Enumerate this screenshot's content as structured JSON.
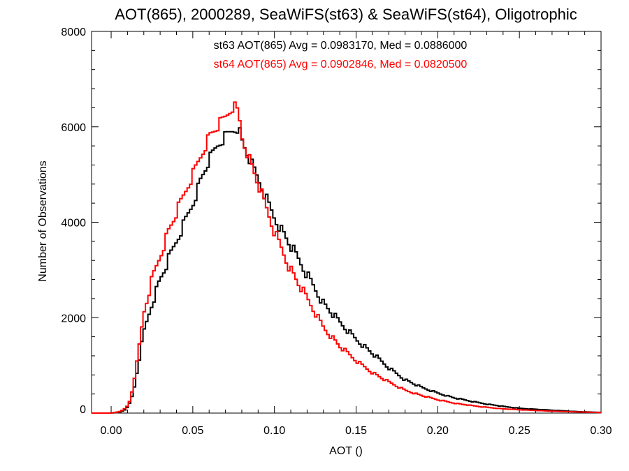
{
  "chart_data": {
    "type": "line",
    "title": "AOT(865), 2000289, SeaWiFS(st63) & SeaWiFS(st64), Oligotrophic",
    "xlabel": "AOT ()",
    "ylabel": "Number of Observations",
    "xlim": [
      -0.012,
      0.3
    ],
    "ylim": [
      0,
      8000
    ],
    "grid": false,
    "x_ticks": [
      0.0,
      0.05,
      0.1,
      0.15,
      0.2,
      0.25,
      0.3
    ],
    "x_tick_labels": [
      "0.00",
      "0.05",
      "0.10",
      "0.15",
      "0.20",
      "0.25",
      "0.30"
    ],
    "y_ticks": [
      0,
      2000,
      4000,
      6000,
      8000
    ],
    "y_tick_labels": [
      "0",
      "2000",
      "4000",
      "6000",
      "8000"
    ],
    "annotations": [
      {
        "text": "st63 AOT(865) Avg = 0.0983170, Med = 0.0886000",
        "color": "#000000"
      },
      {
        "text": "st64 AOT(865) Avg = 0.0902846, Med = 0.0820500",
        "color": "#ff0000"
      }
    ],
    "series": [
      {
        "color": "#000000",
        "style": "histogram-step",
        "x": [
          -0.012,
          0.0,
          0.005,
          0.008,
          0.01,
          0.012,
          0.014,
          0.016,
          0.018,
          0.02,
          0.025,
          0.03,
          0.035,
          0.04,
          0.045,
          0.05,
          0.055,
          0.06,
          0.065,
          0.07,
          0.075,
          0.078,
          0.08,
          0.085,
          0.09,
          0.095,
          0.1,
          0.105,
          0.11,
          0.115,
          0.12,
          0.125,
          0.13,
          0.14,
          0.15,
          0.16,
          0.17,
          0.18,
          0.19,
          0.2,
          0.21,
          0.22,
          0.23,
          0.24,
          0.25,
          0.26,
          0.27,
          0.28,
          0.29,
          0.3
        ],
        "y": [
          0,
          0,
          20,
          60,
          120,
          250,
          500,
          900,
          1300,
          1700,
          2300,
          2800,
          3200,
          3600,
          4000,
          4400,
          4900,
          5300,
          5600,
          5800,
          5950,
          6000,
          5700,
          5300,
          4900,
          4500,
          4100,
          3800,
          3500,
          3200,
          2900,
          2600,
          2300,
          1900,
          1550,
          1250,
          950,
          700,
          540,
          420,
          320,
          250,
          190,
          140,
          100,
          80,
          60,
          40,
          25,
          15
        ]
      },
      {
        "color": "#ff0000",
        "style": "histogram-step",
        "x": [
          -0.012,
          0.0,
          0.005,
          0.008,
          0.01,
          0.012,
          0.014,
          0.016,
          0.018,
          0.02,
          0.025,
          0.03,
          0.035,
          0.04,
          0.045,
          0.05,
          0.055,
          0.06,
          0.065,
          0.07,
          0.075,
          0.078,
          0.08,
          0.085,
          0.09,
          0.095,
          0.1,
          0.105,
          0.11,
          0.115,
          0.12,
          0.125,
          0.13,
          0.14,
          0.15,
          0.16,
          0.17,
          0.18,
          0.19,
          0.2,
          0.21,
          0.22,
          0.23,
          0.24,
          0.25,
          0.26,
          0.27,
          0.28,
          0.29,
          0.3
        ],
        "y": [
          0,
          0,
          30,
          80,
          150,
          300,
          700,
          1100,
          1600,
          2100,
          2800,
          3300,
          3800,
          4200,
          4600,
          5000,
          5400,
          5800,
          6000,
          6200,
          6450,
          6300,
          5800,
          5300,
          4800,
          4300,
          3800,
          3400,
          3000,
          2700,
          2400,
          2100,
          1800,
          1400,
          1100,
          850,
          650,
          480,
          370,
          280,
          210,
          160,
          120,
          90,
          70,
          55,
          40,
          30,
          20,
          10
        ]
      }
    ]
  }
}
